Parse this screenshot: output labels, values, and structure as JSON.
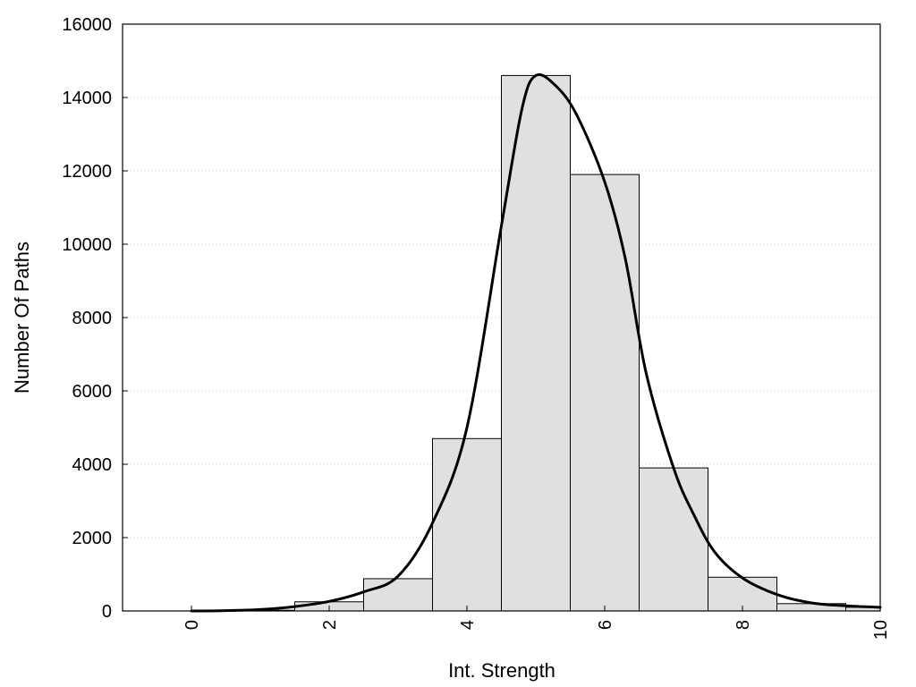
{
  "chart_data": {
    "type": "bar",
    "xlabel": "Int. Strength",
    "ylabel": "Number Of Paths",
    "xlim": [
      -1,
      10
    ],
    "ylim": [
      0,
      16000
    ],
    "x_ticks": [
      "0",
      "2",
      "4",
      "6",
      "8",
      "10"
    ],
    "y_ticks": [
      "0",
      "2000",
      "4000",
      "6000",
      "8000",
      "10000",
      "12000",
      "14000",
      "16000"
    ],
    "grid": "horizontal dotted",
    "bars": {
      "x": [
        0,
        1,
        2,
        3,
        4,
        5,
        6,
        7,
        8,
        9,
        10
      ],
      "values": [
        0,
        20,
        250,
        880,
        4700,
        14600,
        11900,
        3900,
        920,
        200,
        100
      ]
    },
    "curve": {
      "x": [
        0,
        0.5,
        1,
        1.5,
        2,
        2.5,
        3,
        3.5,
        4,
        4.5,
        4.8,
        5,
        5.3,
        5.6,
        6,
        6.3,
        6.6,
        7,
        7.3,
        7.6,
        8,
        8.5,
        9,
        9.5,
        10
      ],
      "y": [
        0,
        10,
        40,
        120,
        260,
        520,
        950,
        2400,
        5000,
        10500,
        13700,
        14600,
        14300,
        13500,
        11700,
        9600,
        6500,
        3900,
        2600,
        1600,
        900,
        450,
        220,
        140,
        100
      ]
    },
    "colors": {
      "bar_fill": "#e0e0e0",
      "bar_edge": "#000000",
      "curve": "#000000"
    }
  }
}
